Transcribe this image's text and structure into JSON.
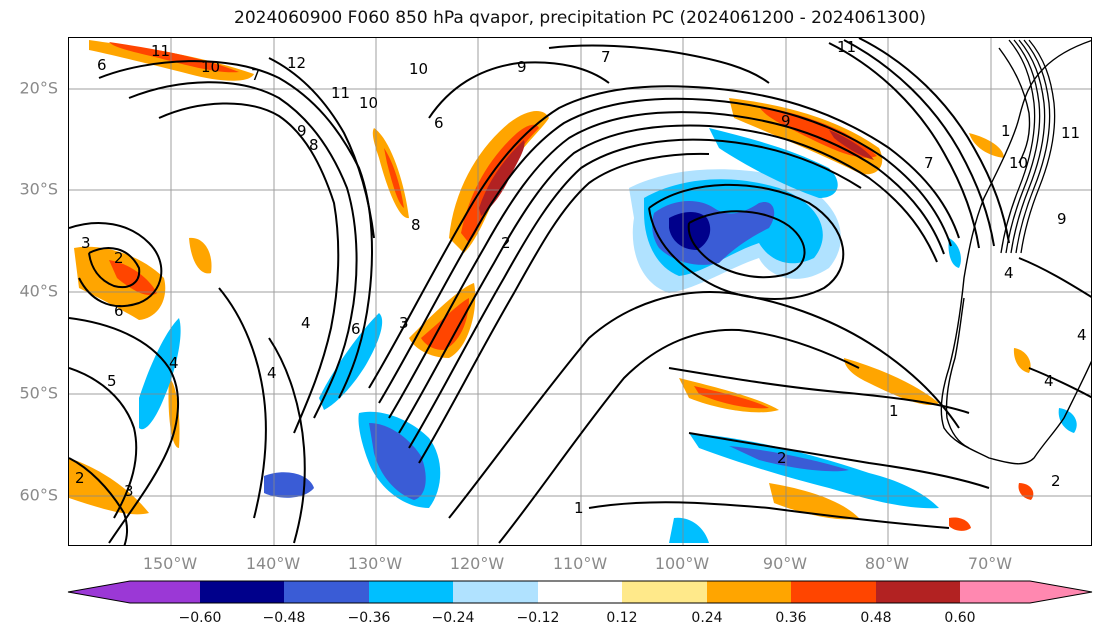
{
  "title": "2024060900 F060 850 hPa qvapor, precipitation PC (2024061200 - 2024061300)",
  "map": {
    "lat_labels": [
      "20°S",
      "30°S",
      "40°S",
      "50°S",
      "60°S"
    ],
    "lon_labels": [
      "150°W",
      "140°W",
      "130°W",
      "120°W",
      "110°W",
      "100°W",
      "90°W",
      "80°W",
      "70°W"
    ],
    "contour_labels": [
      "6",
      "11",
      "10",
      "7",
      "12",
      "11",
      "9",
      "10",
      "9",
      "7",
      "11",
      "9",
      "8",
      "10",
      "3",
      "2",
      "6",
      "4",
      "5",
      "6",
      "3",
      "4",
      "4",
      "2",
      "3",
      "2",
      "1",
      "2",
      "1",
      "1",
      "11",
      "9",
      "4",
      "4",
      "2",
      "4",
      "6",
      "8",
      "7",
      "10"
    ]
  },
  "colorbar": {
    "ticks": [
      "−0.60",
      "−0.48",
      "−0.36",
      "−0.24",
      "−0.12",
      "0.12",
      "0.24",
      "0.36",
      "0.48",
      "0.60"
    ],
    "colors": [
      "#9b38d6",
      "#00008b",
      "#3a5cd6",
      "#00bfff",
      "#b0e2ff",
      "#ffffff",
      "#ffe98a",
      "#ffa500",
      "#ff4500",
      "#b22222",
      "#ff88b0"
    ]
  },
  "colors": {
    "contour": "#000000",
    "grid": "#888888",
    "coast": "#000000"
  }
}
